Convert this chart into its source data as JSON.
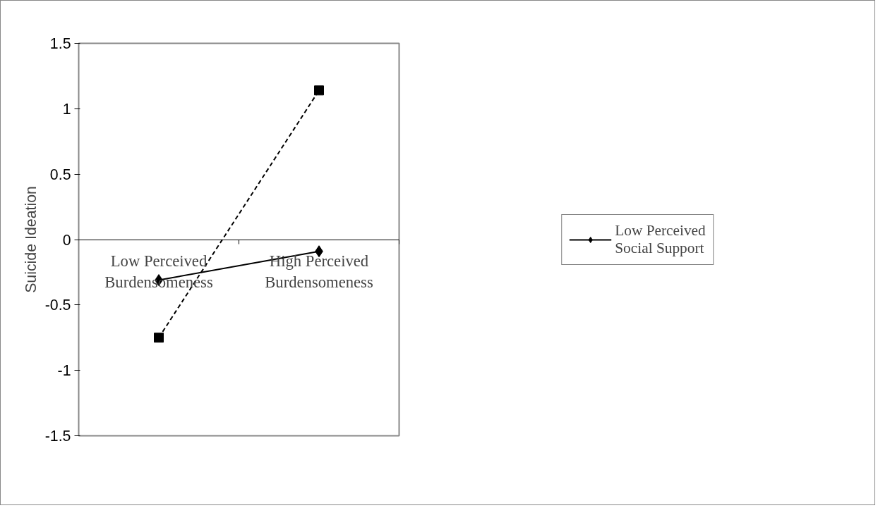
{
  "chart_data": {
    "type": "line",
    "ylabel": "Suicide Ideation",
    "categories": [
      "Low Perceived Burdensomeness",
      "High Perceived Burdensomeness"
    ],
    "series": [
      {
        "name": "Low Perceived Social Support",
        "color": "#000000",
        "values": [
          -0.31,
          -0.09
        ],
        "marker": "diamond",
        "line_style": "solid"
      },
      {
        "color": "#000000",
        "values": [
          -0.75,
          1.14
        ],
        "marker": "square",
        "line_style": "dashed"
      }
    ],
    "ylim": [
      -1.5,
      1.5
    ],
    "yticks": [
      -1.5,
      -1,
      -0.5,
      0,
      0.5,
      1,
      1.5
    ],
    "grid": false,
    "legend": "right"
  }
}
